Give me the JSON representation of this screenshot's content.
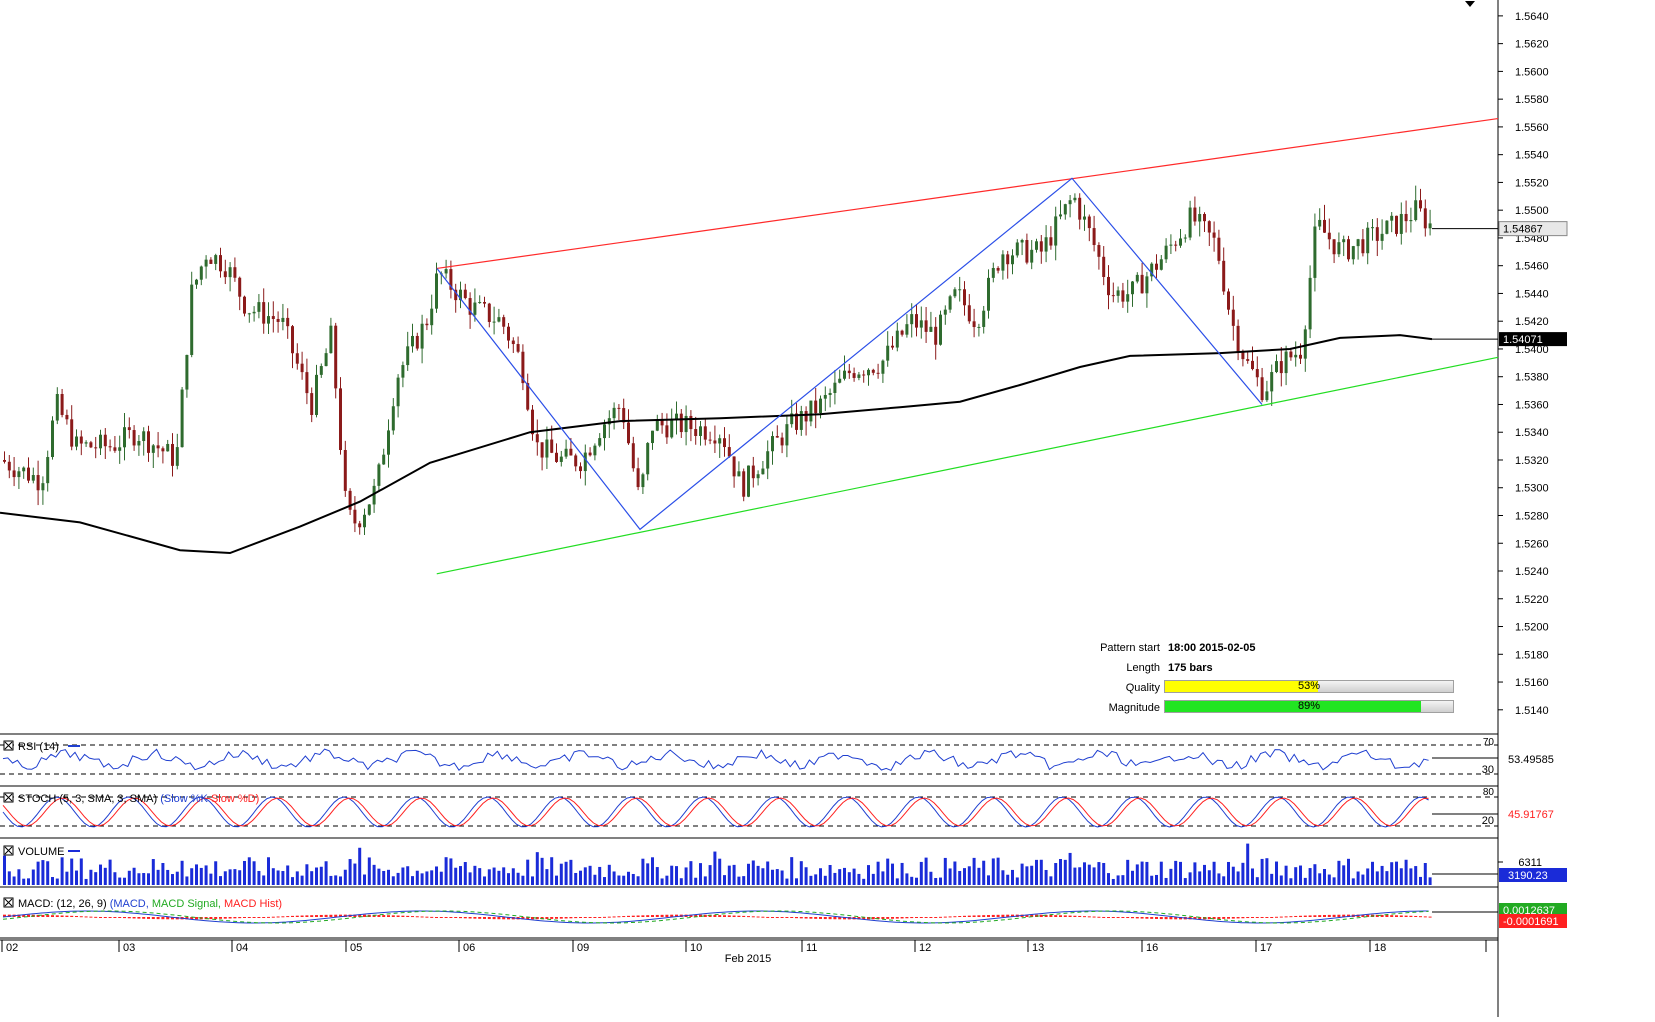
{
  "chart_data": {
    "type": "candlestick",
    "instrument_last_price": "1.54867",
    "ma_last_value": "1.54071",
    "price_axis": {
      "ylim": [
        1.5124,
        1.565
      ],
      "tick_labels": [
        "1.5640",
        "1.5620",
        "1.5600",
        "1.5580",
        "1.5560",
        "1.5540",
        "1.5520",
        "1.5500",
        "1.5480",
        "1.5460",
        "1.5440",
        "1.5420",
        "1.5400",
        "1.5380",
        "1.5360",
        "1.5340",
        "1.5320",
        "1.5300",
        "1.5280",
        "1.5260",
        "1.5240",
        "1.5220",
        "1.5200",
        "1.5180",
        "1.5160",
        "1.5140"
      ]
    },
    "x_axis": {
      "date_labels": [
        "02",
        "03",
        "04",
        "05",
        "06",
        "09",
        "10",
        "11",
        "12",
        "13",
        "16",
        "17",
        "18"
      ],
      "month_label": "Feb 2015"
    },
    "pattern": {
      "type": "ascending channel",
      "upper_line": {
        "start": [
          "2015-02-05 18:00",
          1.5458
        ],
        "end": [
          "2015-02-18",
          1.5566
        ]
      },
      "lower_line": {
        "start": [
          "2015-02-05 18:00",
          1.5238
        ],
        "end": [
          "2015-02-18",
          1.5394
        ]
      },
      "zigzag": [
        [
          "2015-02-05 18:00",
          1.5458
        ],
        [
          "2015-02-09",
          1.527
        ],
        [
          "2015-02-13",
          1.5523
        ],
        [
          "2015-02-16",
          1.536
        ]
      ]
    },
    "pattern_info": {
      "start_label": "Pattern start",
      "start_value": "18:00 2015-02-05",
      "length_label": "Length",
      "length_value": "175 bars",
      "quality_label": "Quality",
      "quality_value": "53%",
      "quality_fraction": 0.53,
      "magnitude_label": "Magnitude",
      "magnitude_value": "89%",
      "magnitude_fraction": 0.89
    },
    "indicators": {
      "rsi": {
        "label": "RSI (14)",
        "value": "53.49585",
        "levels": [
          "70",
          "30"
        ]
      },
      "stoch": {
        "label_prefix": "STOCH (5, 3, SMA, 3, SMA)",
        "label_k": "(Slow %K",
        "label_d": "Slow %D)",
        "value": "45.91767",
        "levels": [
          "80",
          "20"
        ]
      },
      "volume": {
        "label": "VOLUME",
        "value": "3190.23",
        "axis_label": "6311"
      },
      "macd": {
        "label_prefix": "MACD: (12, 26, 9)",
        "label_macd": "(MACD",
        "label_signal": "MACD Signal",
        "label_hist": "MACD Hist)",
        "value_1": "0.0012637",
        "value_2": "-0.0001691"
      }
    },
    "colors": {
      "bull": "#2e6b2e",
      "bear": "#8b1a1a",
      "ma": "#000000",
      "upper_line": "#ff2a2a",
      "lower_line": "#22dd22",
      "zigzag": "#2b4fe8",
      "rsi": "#1f3fd0",
      "stoch_k": "#1f3fd0",
      "stoch_d": "#ff2020",
      "volume": "#1a2bd8",
      "macd": "#1f3fd0",
      "macd_signal": "#22aa22",
      "macd_hist": "#ff2020",
      "quality_fill": "#ffff00",
      "magnitude_fill": "#22e522",
      "label_box_bg": "#1a2bd8"
    }
  }
}
